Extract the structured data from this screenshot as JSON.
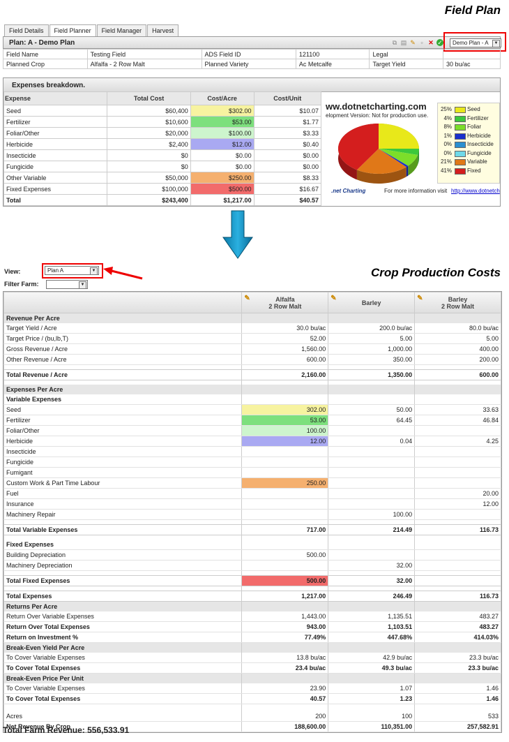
{
  "field_plan_title": "Field Plan",
  "tabs": [
    "Field Details",
    "Field Planner",
    "Field Manager",
    "Harvest"
  ],
  "plan": {
    "title": "Plan: A - Demo Plan",
    "select_value": "Demo Plan - A",
    "fields": [
      [
        "Field Name",
        "Testing Field",
        "ADS Field ID",
        "121100",
        "Legal",
        ""
      ],
      [
        "Planned Crop",
        "Alfalfa - 2 Row Malt",
        "Planned Variety",
        "Ac Metcalfe",
        "Target Yield",
        "30 bu/ac"
      ]
    ]
  },
  "expenses": {
    "title": "Expenses breakdown.",
    "headers": [
      "Expense",
      "Total Cost",
      "Cost/Acre",
      "Cost/Unit"
    ],
    "rows": [
      [
        "Seed",
        "$60,400",
        "$302.00",
        "$10.07"
      ],
      [
        "Fertilizer",
        "$10,600",
        "$53.00",
        "$1.77"
      ],
      [
        "Foliar/Other",
        "$20,000",
        "$100.00",
        "$3.33"
      ],
      [
        "Herbicide",
        "$2,400",
        "$12.00",
        "$0.40"
      ],
      [
        "Insecticide",
        "$0",
        "$0.00",
        "$0.00"
      ],
      [
        "Fungicide",
        "$0",
        "$0.00",
        "$0.00"
      ],
      [
        "Other Variable",
        "$50,000",
        "$250.00",
        "$8.33"
      ],
      [
        "Fixed Expenses",
        "$100,000",
        "$500.00",
        "$16.67"
      ],
      [
        "Total",
        "$243,400",
        "$1,217.00",
        "$40.57"
      ]
    ],
    "highlight_colors": [
      "#f7f3a0",
      "#7de07d",
      "#cdf5cd",
      "#a9a9f2",
      "",
      "",
      "#f5b06f",
      "#f26b6b",
      ""
    ]
  },
  "pie": {
    "watermark_line1": "ww.dotnetcharting.com",
    "watermark_line2": "elopment Version: Not for production use.",
    "legend": [
      {
        "pct": "25%",
        "label": "Seed",
        "color": "#e8e81a",
        "value": 25
      },
      {
        "pct": "4%",
        "label": "Fertilizer",
        "color": "#3cc83c",
        "value": 4
      },
      {
        "pct": "8%",
        "label": "Foliar",
        "color": "#7cde2a",
        "value": 8
      },
      {
        "pct": "1%",
        "label": "Herbicide",
        "color": "#1a2fcc",
        "value": 1
      },
      {
        "pct": "0%",
        "label": "Insecticide",
        "color": "#2a8fd0",
        "value": 0
      },
      {
        "pct": "0%",
        "label": "Fungicide",
        "color": "#6fd9e8",
        "value": 0
      },
      {
        "pct": "21%",
        "label": "Variable",
        "color": "#e07818",
        "value": 21
      },
      {
        "pct": "41%",
        "label": "Fixed",
        "color": "#d41e1e",
        "value": 41
      }
    ],
    "footer_logo": ".net Charting",
    "footer_text": "For more information visit",
    "footer_link": "http://www.dotnetch"
  },
  "crop": {
    "title": "Crop Production Costs",
    "view_label": "View:",
    "view_value": "Plan A",
    "filter_label": "Filter Farm:",
    "filter_value": "",
    "columns": [
      {
        "line1": "Alfalfa",
        "line2": "2 Row Malt"
      },
      {
        "line1": "Barley",
        "line2": ""
      },
      {
        "line1": "Barley",
        "line2": "2 Row Malt"
      }
    ],
    "rows": [
      {
        "t": "sec",
        "label": "Revenue Per Acre",
        "v": [
          "",
          "",
          ""
        ]
      },
      {
        "t": "row",
        "label": "Target Yield / Acre",
        "v": [
          "30.0 bu/ac",
          "200.0 bu/ac",
          "80.0 bu/ac"
        ]
      },
      {
        "t": "row",
        "label": "Target Price / (bu,lb,T)",
        "v": [
          "52.00",
          "5.00",
          "5.00"
        ]
      },
      {
        "t": "row",
        "label": "Gross Revenue / Acre",
        "v": [
          "1,560.00",
          "1,000.00",
          "400.00"
        ]
      },
      {
        "t": "row",
        "label": "Other Revenue / Acre",
        "v": [
          "600.00",
          "350.00",
          "200.00"
        ]
      },
      {
        "t": "gap",
        "label": "",
        "v": [
          "",
          "",
          ""
        ]
      },
      {
        "t": "tot",
        "label": "Total Revenue / Acre",
        "v": [
          "2,160.00",
          "1,350.00",
          "600.00"
        ]
      },
      {
        "t": "gap",
        "label": "",
        "v": [
          "",
          "",
          ""
        ]
      },
      {
        "t": "sec",
        "label": "Expenses Per Acre",
        "v": [
          "",
          "",
          ""
        ]
      },
      {
        "t": "bold",
        "label": "Variable Expenses",
        "v": [
          "",
          "",
          ""
        ]
      },
      {
        "t": "row",
        "label": "Seed",
        "v": [
          "302.00",
          "50.00",
          "33.63"
        ],
        "c": "#f7f3a0"
      },
      {
        "t": "row",
        "label": "Fertilizer",
        "v": [
          "53.00",
          "64.45",
          "46.84"
        ],
        "c": "#7de07d"
      },
      {
        "t": "row",
        "label": "Foliar/Other",
        "v": [
          "100.00",
          "",
          ""
        ],
        "c": "#cdf5cd"
      },
      {
        "t": "row",
        "label": "Herbicide",
        "v": [
          "12.00",
          "0.04",
          "4.25"
        ],
        "c": "#a9a9f2"
      },
      {
        "t": "row",
        "label": "Insecticide",
        "v": [
          "",
          "",
          ""
        ]
      },
      {
        "t": "row",
        "label": "Fungicide",
        "v": [
          "",
          "",
          ""
        ]
      },
      {
        "t": "row",
        "label": "Fumigant",
        "v": [
          "",
          "",
          ""
        ]
      },
      {
        "t": "row",
        "label": "Custom Work & Part Time Labour",
        "v": [
          "250.00",
          "",
          ""
        ],
        "c": "#f5b06f"
      },
      {
        "t": "row",
        "label": "Fuel",
        "v": [
          "",
          "",
          "20.00"
        ]
      },
      {
        "t": "row",
        "label": "Insurance",
        "v": [
          "",
          "",
          "12.00"
        ]
      },
      {
        "t": "row",
        "label": "Machinery Repair",
        "v": [
          "",
          "100.00",
          ""
        ]
      },
      {
        "t": "gap",
        "label": "",
        "v": [
          "",
          "",
          ""
        ]
      },
      {
        "t": "tot",
        "label": "Total Variable Expenses",
        "v": [
          "717.00",
          "214.49",
          "116.73"
        ]
      },
      {
        "t": "gap",
        "label": "",
        "v": [
          "",
          "",
          ""
        ]
      },
      {
        "t": "bold",
        "label": "Fixed Expenses",
        "v": [
          "",
          "",
          ""
        ]
      },
      {
        "t": "row",
        "label": "Building Depreciation",
        "v": [
          "500.00",
          "",
          ""
        ]
      },
      {
        "t": "row",
        "label": "Machinery Depreciation",
        "v": [
          "",
          "32.00",
          ""
        ]
      },
      {
        "t": "gap",
        "label": "",
        "v": [
          "",
          "",
          ""
        ]
      },
      {
        "t": "tot",
        "label": "Total Fixed Expenses",
        "v": [
          "500.00",
          "32.00",
          ""
        ],
        "c": "#f26b6b"
      },
      {
        "t": "gap",
        "label": "",
        "v": [
          "",
          "",
          ""
        ]
      },
      {
        "t": "tot",
        "label": "Total Expenses",
        "v": [
          "1,217.00",
          "246.49",
          "116.73"
        ]
      },
      {
        "t": "sec",
        "label": "Returns Per Acre",
        "v": [
          "",
          "",
          ""
        ]
      },
      {
        "t": "row",
        "label": "Return Over Variable Expenses",
        "v": [
          "1,443.00",
          "1,135.51",
          "483.27"
        ]
      },
      {
        "t": "rowb",
        "label": "Return Over Total Expenses",
        "v": [
          "943.00",
          "1,103.51",
          "483.27"
        ]
      },
      {
        "t": "rowb",
        "label": "Return on Investment %",
        "v": [
          "77.49%",
          "447.68%",
          "414.03%"
        ]
      },
      {
        "t": "sec",
        "label": "Break-Even Yield Per Acre",
        "v": [
          "",
          "",
          ""
        ]
      },
      {
        "t": "row",
        "label": "To Cover Variable Expenses",
        "v": [
          "13.8 bu/ac",
          "42.9 bu/ac",
          "23.3 bu/ac"
        ]
      },
      {
        "t": "rowb",
        "label": "To Cover Total Expenses",
        "v": [
          "23.4 bu/ac",
          "49.3 bu/ac",
          "23.3 bu/ac"
        ]
      },
      {
        "t": "sec",
        "label": "Break-Even Price Per Unit",
        "v": [
          "",
          "",
          ""
        ]
      },
      {
        "t": "row",
        "label": "To Cover Variable Expenses",
        "v": [
          "23.90",
          "1.07",
          "1.46"
        ]
      },
      {
        "t": "rowb",
        "label": "To Cover Total Expenses",
        "v": [
          "40.57",
          "1.23",
          "1.46"
        ]
      },
      {
        "t": "gap2",
        "label": "",
        "v": [
          "",
          "",
          ""
        ]
      },
      {
        "t": "row",
        "label": "Acres",
        "v": [
          "200",
          "100",
          "533"
        ]
      },
      {
        "t": "rowb",
        "label": "Net Revenue By Crop",
        "v": [
          "188,600.00",
          "110,351.00",
          "257,582.91"
        ]
      }
    ],
    "total_farm_revenue": "Total Farm Revenue: 556,533.91"
  }
}
